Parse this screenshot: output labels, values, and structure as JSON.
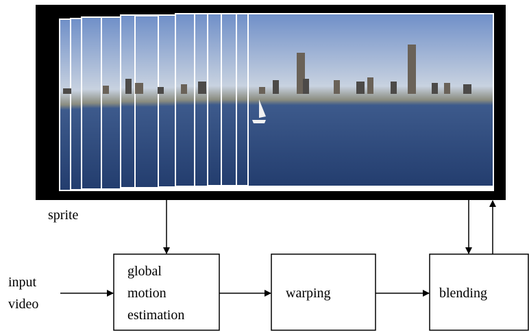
{
  "sprite_label": "sprite",
  "input_label": [
    "input",
    "video"
  ],
  "nodes": [
    {
      "lines": [
        "global",
        "motion",
        "estimation"
      ]
    },
    {
      "lines": [
        "warping"
      ]
    },
    {
      "lines": [
        "blending"
      ]
    }
  ]
}
